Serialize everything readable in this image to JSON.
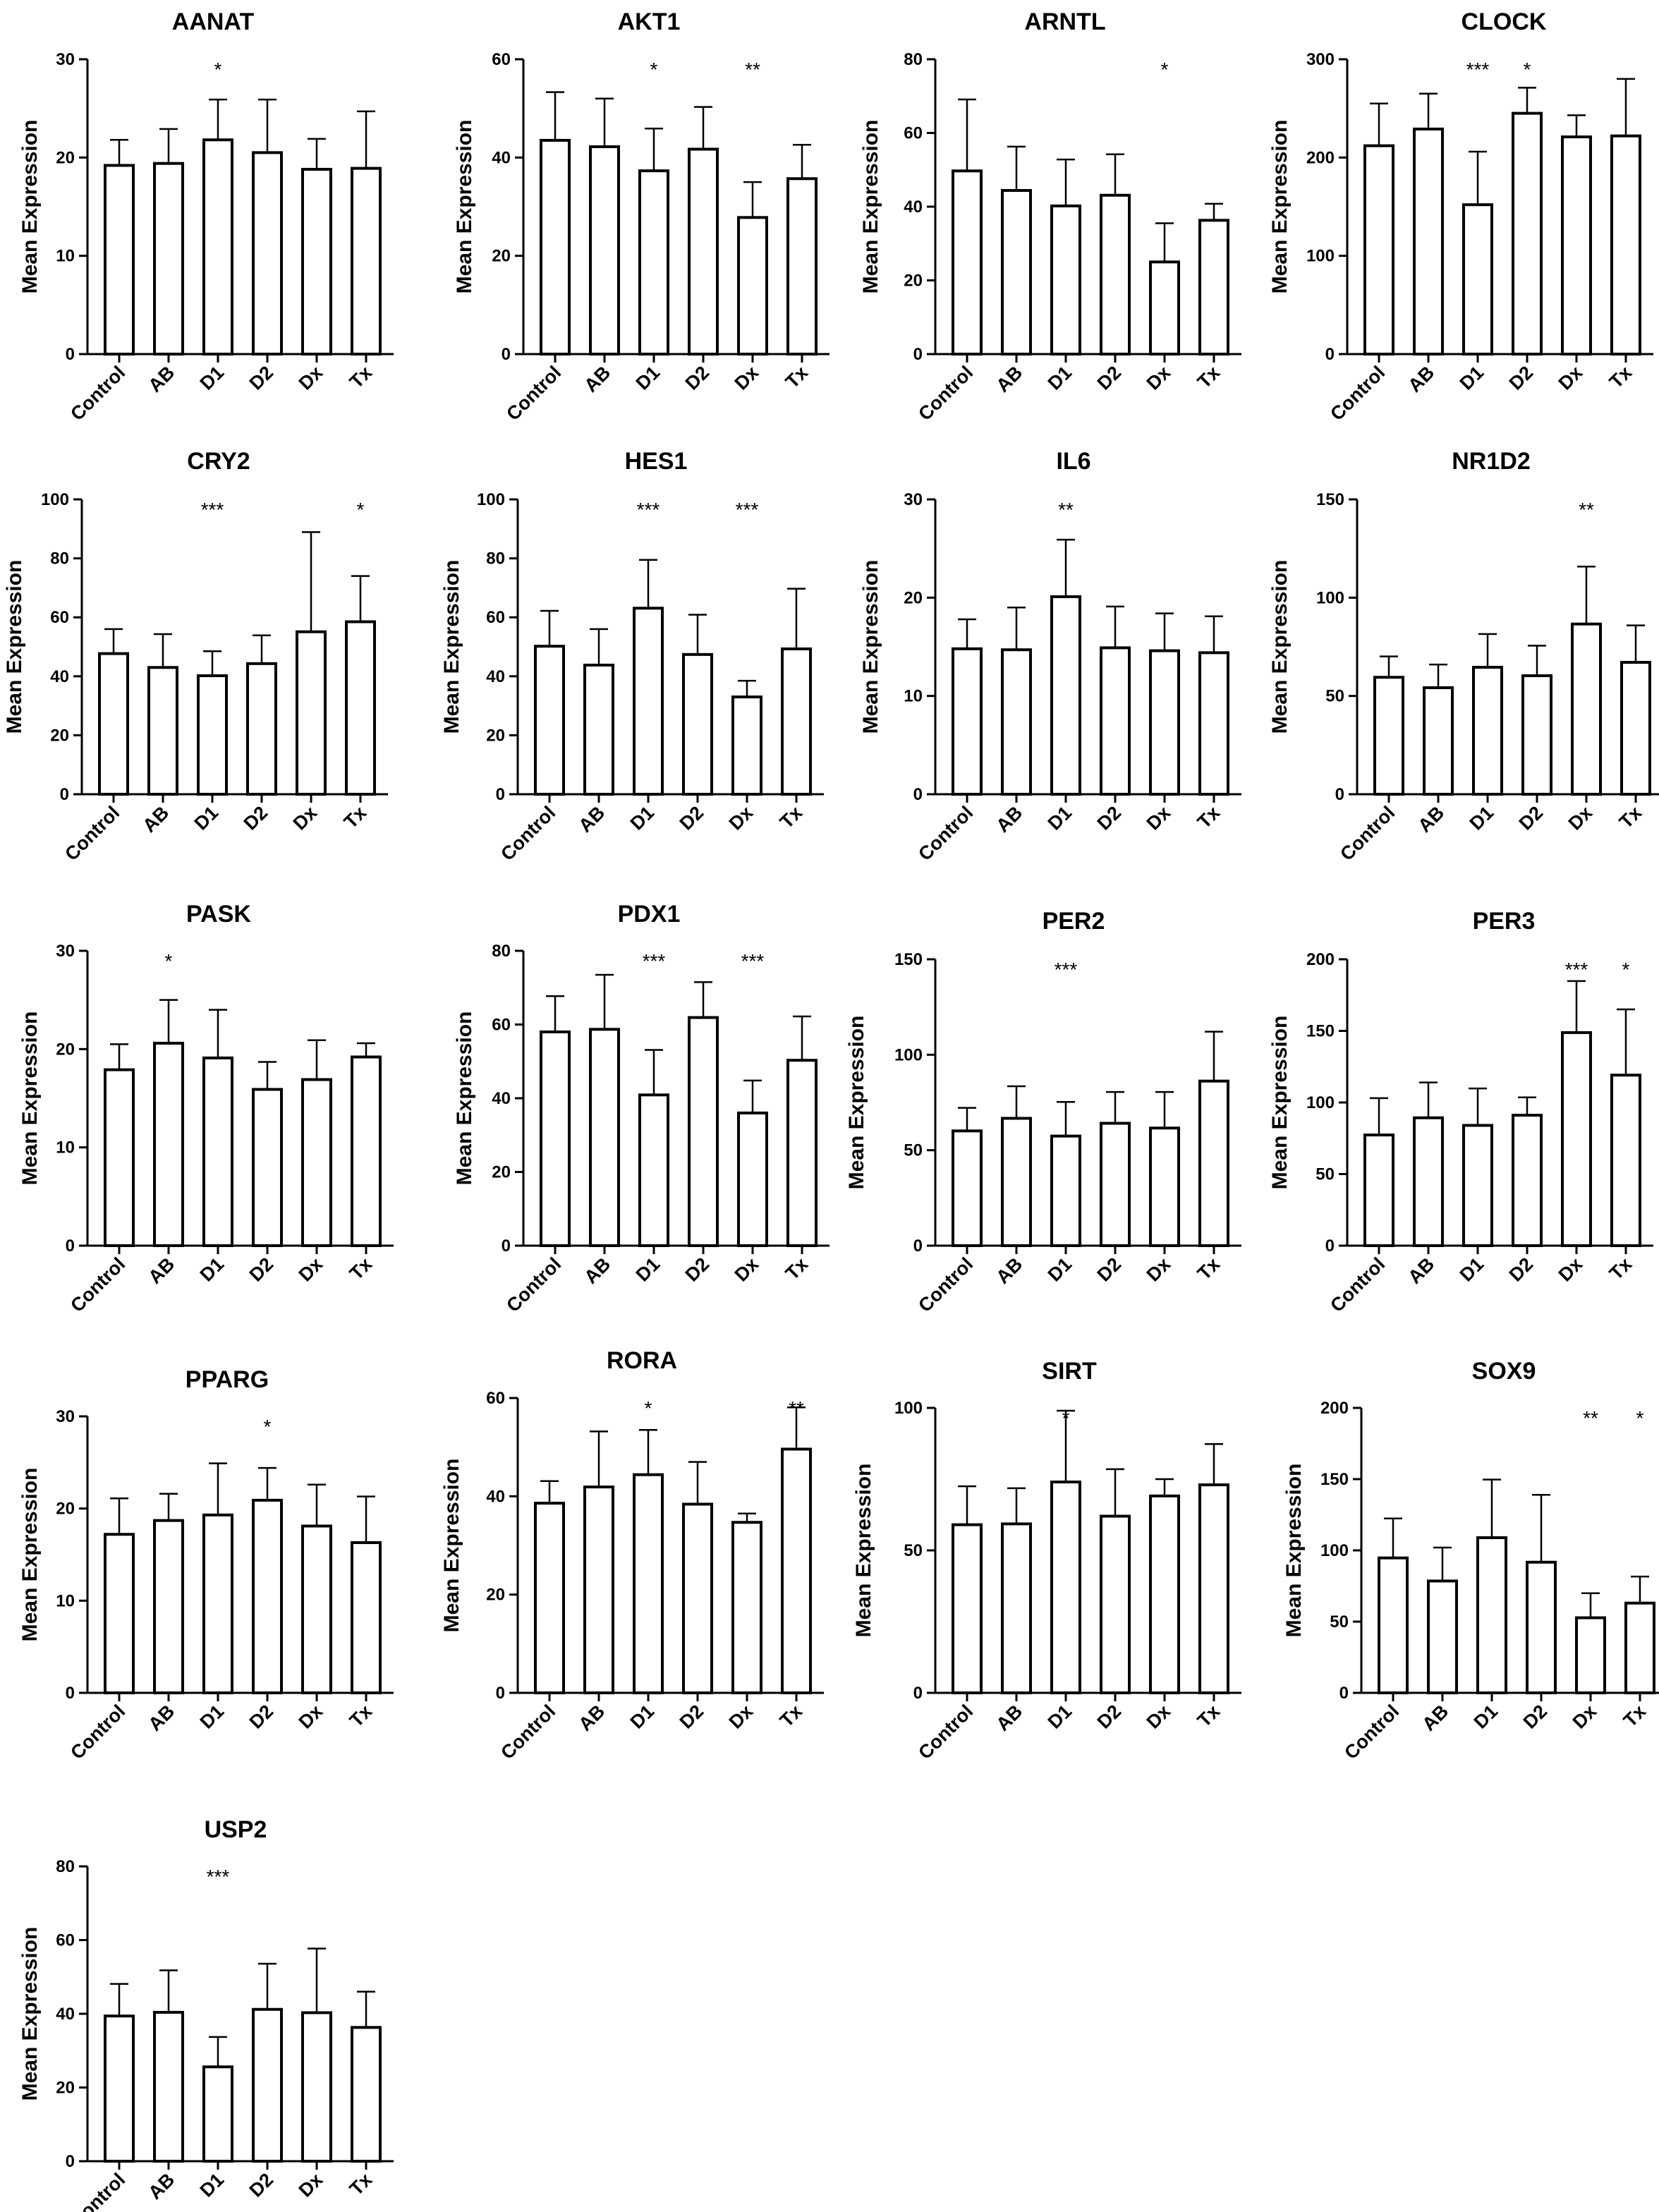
{
  "categories": [
    "Control",
    "AB",
    "D1",
    "D2",
    "Dx",
    "Tx"
  ],
  "ylabel": "Mean Expression",
  "chart_data": [
    {
      "type": "bar",
      "title": "AANAT",
      "ylabel": "Mean Expression",
      "categories": [
        "Control",
        "AB",
        "D1",
        "D2",
        "Dx",
        "Tx"
      ],
      "ylim": [
        0,
        30
      ],
      "yticks": [
        "0",
        "10",
        "20",
        "30"
      ],
      "values": [
        19.2,
        19.4,
        21.8,
        20.5,
        18.8,
        18.9
      ],
      "errors": [
        2.6,
        3.5,
        4.1,
        5.4,
        3.1,
        5.8
      ],
      "stars": [
        "",
        "",
        "*",
        "",
        "",
        ""
      ]
    },
    {
      "type": "bar",
      "title": "AKT1",
      "ylabel": "Mean Expression",
      "categories": [
        "Control",
        "AB",
        "D1",
        "D2",
        "Dx",
        "Tx"
      ],
      "ylim": [
        0,
        60
      ],
      "yticks": [
        "0",
        "20",
        "40",
        "60"
      ],
      "values": [
        43.5,
        42.2,
        37.3,
        41.7,
        27.8,
        35.7
      ],
      "errors": [
        9.8,
        9.8,
        8.6,
        8.6,
        7.2,
        6.9
      ],
      "stars": [
        "",
        "",
        "*",
        "",
        "**",
        ""
      ]
    },
    {
      "type": "bar",
      "title": "ARNTL",
      "ylabel": "Mean Expression",
      "categories": [
        "Control",
        "AB",
        "D1",
        "D2",
        "Dx",
        "Tx"
      ],
      "ylim": [
        0,
        80
      ],
      "yticks": [
        "0",
        "20",
        "40",
        "60",
        "80"
      ],
      "values": [
        49.7,
        44.4,
        40.2,
        43.1,
        25.0,
        36.3
      ],
      "errors": [
        19.4,
        11.9,
        12.6,
        11.1,
        10.5,
        4.5
      ],
      "stars": [
        "",
        "",
        "",
        "",
        "*",
        ""
      ]
    },
    {
      "type": "bar",
      "title": "CLOCK",
      "ylabel": "Mean Expression",
      "categories": [
        "Control",
        "AB",
        "D1",
        "D2",
        "Dx",
        "Tx"
      ],
      "ylim": [
        0,
        300
      ],
      "yticks": [
        "0",
        "100",
        "200",
        "300"
      ],
      "values": [
        212,
        229,
        152,
        245,
        221,
        222
      ],
      "errors": [
        43,
        36,
        54,
        26,
        22,
        58
      ],
      "stars": [
        "",
        "",
        "***",
        "*",
        "",
        ""
      ]
    },
    {
      "type": "bar",
      "title": "CRY2",
      "ylabel": "Mean Expression",
      "categories": [
        "Control",
        "AB",
        "D1",
        "D2",
        "Dx",
        "Tx"
      ],
      "ylim": [
        0,
        100
      ],
      "yticks": [
        "0",
        "20",
        "40",
        "60",
        "80",
        "100"
      ],
      "values": [
        47.7,
        43.0,
        40.2,
        44.3,
        55.1,
        58.5
      ],
      "errors": [
        8.3,
        11.3,
        8.3,
        9.6,
        33.8,
        15.5
      ],
      "stars": [
        "",
        "",
        "***",
        "",
        "",
        "*"
      ]
    },
    {
      "type": "bar",
      "title": "HES1",
      "ylabel": "Mean Expression",
      "categories": [
        "Control",
        "AB",
        "D1",
        "D2",
        "Dx",
        "Tx"
      ],
      "ylim": [
        0,
        100
      ],
      "yticks": [
        "0",
        "20",
        "40",
        "60",
        "80",
        "100"
      ],
      "values": [
        50.2,
        43.8,
        63.1,
        47.4,
        33.0,
        49.3
      ],
      "errors": [
        12.0,
        12.2,
        16.4,
        13.5,
        5.5,
        20.4
      ],
      "stars": [
        "",
        "",
        "***",
        "",
        "***",
        ""
      ]
    },
    {
      "type": "bar",
      "title": "IL6",
      "ylabel": "Mean Expression",
      "categories": [
        "Control",
        "AB",
        "D1",
        "D2",
        "Dx",
        "Tx"
      ],
      "ylim": [
        0,
        30
      ],
      "yticks": [
        "0",
        "10",
        "20",
        "30"
      ],
      "values": [
        14.8,
        14.7,
        20.1,
        14.9,
        14.6,
        14.4
      ],
      "errors": [
        3.0,
        4.3,
        5.8,
        4.2,
        3.8,
        3.7
      ],
      "stars": [
        "",
        "",
        "**",
        "",
        "",
        ""
      ]
    },
    {
      "type": "bar",
      "title": "NR1D2",
      "ylabel": "Mean Expression",
      "categories": [
        "Control",
        "AB",
        "D1",
        "D2",
        "Dx",
        "Tx"
      ],
      "ylim": [
        0,
        150
      ],
      "yticks": [
        "0",
        "50",
        "100",
        "150"
      ],
      "values": [
        59.5,
        54.2,
        64.6,
        60.3,
        86.6,
        67.1
      ],
      "errors": [
        10.6,
        11.8,
        16.9,
        15.3,
        29.2,
        18.8
      ],
      "stars": [
        "",
        "",
        "",
        "",
        "**",
        ""
      ]
    },
    {
      "type": "bar",
      "title": "PASK",
      "ylabel": "Mean Expression",
      "categories": [
        "Control",
        "AB",
        "D1",
        "D2",
        "Dx",
        "Tx"
      ],
      "ylim": [
        0,
        30
      ],
      "yticks": [
        "0",
        "10",
        "20",
        "30"
      ],
      "values": [
        17.9,
        20.6,
        19.1,
        15.9,
        16.9,
        19.2
      ],
      "errors": [
        2.6,
        4.4,
        4.9,
        2.8,
        4.0,
        1.4
      ],
      "stars": [
        "",
        "*",
        "",
        "",
        "",
        ""
      ]
    },
    {
      "type": "bar",
      "title": "PDX1",
      "ylabel": "Mean Expression",
      "categories": [
        "Control",
        "AB",
        "D1",
        "D2",
        "Dx",
        "Tx"
      ],
      "ylim": [
        0,
        80
      ],
      "yticks": [
        "0",
        "20",
        "40",
        "60",
        "80"
      ],
      "values": [
        58.0,
        58.7,
        40.9,
        61.9,
        36.0,
        50.3
      ],
      "errors": [
        9.7,
        14.8,
        12.2,
        9.6,
        8.8,
        11.9
      ],
      "stars": [
        "",
        "",
        "***",
        "",
        "***",
        ""
      ]
    },
    {
      "type": "bar",
      "title": "PER2",
      "ylabel": "Mean Expression",
      "categories": [
        "Control",
        "AB",
        "D1",
        "D2",
        "Dx",
        "Tx"
      ],
      "ylim": [
        0,
        150
      ],
      "yticks": [
        "0",
        "50",
        "100",
        "150"
      ],
      "values": [
        60.1,
        66.7,
        57.4,
        64.1,
        61.6,
        86.2
      ],
      "errors": [
        12.1,
        16.8,
        17.9,
        16.4,
        18.9,
        25.9
      ],
      "stars": [
        "",
        "",
        "***",
        "",
        "",
        ""
      ]
    },
    {
      "type": "bar",
      "title": "PER3",
      "ylabel": "Mean Expression",
      "categories": [
        "Control",
        "AB",
        "D1",
        "D2",
        "Dx",
        "Tx"
      ],
      "ylim": [
        0,
        200
      ],
      "yticks": [
        "0",
        "50",
        "100",
        "150",
        "200"
      ],
      "values": [
        77.3,
        89.3,
        84.0,
        91.1,
        148.8,
        119.1
      ],
      "errors": [
        25.7,
        24.7,
        25.8,
        12.5,
        36.0,
        45.9
      ],
      "stars": [
        "",
        "",
        "",
        "",
        "***",
        "*"
      ]
    },
    {
      "type": "bar",
      "title": "PPARG",
      "ylabel": "Mean Expression",
      "categories": [
        "Control",
        "AB",
        "D1",
        "D2",
        "Dx",
        "Tx"
      ],
      "ylim": [
        0,
        30
      ],
      "yticks": [
        "0",
        "10",
        "20",
        "30"
      ],
      "values": [
        17.2,
        18.7,
        19.3,
        20.9,
        18.1,
        16.3
      ],
      "errors": [
        3.9,
        2.9,
        5.6,
        3.5,
        4.5,
        5.0
      ],
      "stars": [
        "",
        "",
        "",
        "*",
        "",
        ""
      ]
    },
    {
      "type": "bar",
      "title": "RORA",
      "ylabel": "Mean Expression",
      "categories": [
        "Control",
        "AB",
        "D1",
        "D2",
        "Dx",
        "Tx"
      ],
      "ylim": [
        0,
        60
      ],
      "yticks": [
        "0",
        "20",
        "40",
        "60"
      ],
      "values": [
        38.6,
        41.9,
        44.4,
        38.4,
        34.7,
        49.6
      ],
      "errors": [
        4.5,
        11.3,
        9.1,
        8.6,
        1.8,
        8.5
      ],
      "stars": [
        "",
        "",
        "*",
        "",
        "",
        "**"
      ]
    },
    {
      "type": "bar",
      "title": "SIRT",
      "ylabel": "Mean Expression",
      "categories": [
        "Control",
        "AB",
        "D1",
        "D2",
        "Dx",
        "Tx"
      ],
      "ylim": [
        0,
        100
      ],
      "yticks": [
        "0",
        "50",
        "100"
      ],
      "values": [
        59.0,
        59.3,
        74.0,
        62.0,
        69.1,
        73.0
      ],
      "errors": [
        13.5,
        12.5,
        25.0,
        16.5,
        5.9,
        14.3
      ],
      "stars": [
        "",
        "",
        "*",
        "",
        "",
        ""
      ]
    },
    {
      "type": "bar",
      "title": "SOX9",
      "ylabel": "Mean Expression",
      "categories": [
        "Control",
        "AB",
        "D1",
        "D2",
        "Dx",
        "Tx"
      ],
      "ylim": [
        0,
        200
      ],
      "yticks": [
        "0",
        "50",
        "100",
        "150",
        "200"
      ],
      "values": [
        94.7,
        78.5,
        108.9,
        91.7,
        52.7,
        63.0
      ],
      "errors": [
        27.7,
        23.5,
        40.8,
        47.3,
        17.2,
        18.6
      ],
      "stars": [
        "",
        "",
        "",
        "",
        "**",
        "*"
      ]
    },
    {
      "type": "bar",
      "title": "USP2",
      "ylabel": "Mean Expression",
      "categories": [
        "Control",
        "AB",
        "D1",
        "D2",
        "Dx",
        "Tx"
      ],
      "ylim": [
        0,
        80
      ],
      "yticks": [
        "0",
        "20",
        "40",
        "60",
        "80"
      ],
      "values": [
        39.4,
        40.4,
        25.6,
        41.2,
        40.3,
        36.3
      ],
      "errors": [
        8.7,
        11.4,
        8.1,
        12.4,
        17.4,
        9.7
      ],
      "stars": [
        "",
        "",
        "***",
        "",
        "",
        ""
      ]
    }
  ]
}
